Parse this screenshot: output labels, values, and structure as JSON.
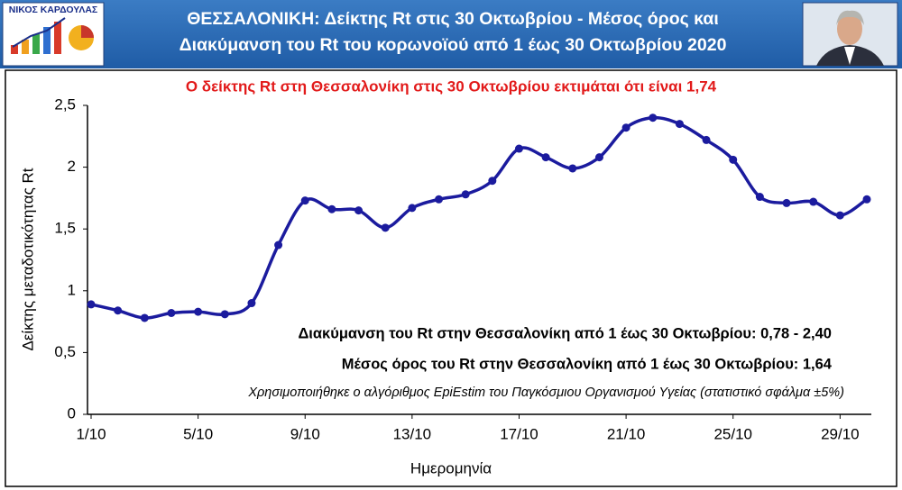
{
  "header": {
    "logo_title": "ΝΙΚΟΣ ΚΑΡΔΟΥΛΑΣ",
    "title_lines": [
      "ΘΕΣΣΑΛΟΝΙΚΗ: Δείκτης Rt στις 30 Οκτωβρίου - Μέσος όρος και",
      "Διακύμανση του Rt του κορωνοϊού από 1 έως 30 Οκτωβρίου 2020"
    ]
  },
  "chart_data": {
    "type": "line",
    "title": "Ο δείκτης Rt στη Θεσσαλονίκη στις 30 Οκτωβρίου εκτιμάται ότι είναι 1,74",
    "x_label": "Ημερομηνία",
    "y_label": "Δείκτης μεταδοτικότητας Rt",
    "categories": [
      "1/10",
      null,
      null,
      null,
      "5/10",
      null,
      null,
      null,
      "9/10",
      null,
      null,
      null,
      "13/10",
      null,
      null,
      null,
      "17/10",
      null,
      null,
      null,
      "21/10",
      null,
      null,
      null,
      "25/10",
      null,
      null,
      null,
      "29/10",
      null
    ],
    "values": [
      0.89,
      0.84,
      0.78,
      0.82,
      0.83,
      0.81,
      0.9,
      1.37,
      1.73,
      1.66,
      1.65,
      1.51,
      1.67,
      1.74,
      1.78,
      1.89,
      2.15,
      2.08,
      1.99,
      2.08,
      2.32,
      2.4,
      2.35,
      2.22,
      2.06,
      1.76,
      1.71,
      1.72,
      1.61,
      1.74
    ],
    "color": "#1b1b9e",
    "smooth": true,
    "markers": true,
    "grid": false,
    "ylim": [
      0,
      2.5
    ],
    "yticks": [
      {
        "value": 0,
        "label": "0"
      },
      {
        "value": 0.5,
        "label": "0,5"
      },
      {
        "value": 1,
        "label": "1"
      },
      {
        "value": 1.5,
        "label": "1,5"
      },
      {
        "value": 2,
        "label": "2"
      },
      {
        "value": 2.5,
        "label": "2,5"
      }
    ],
    "annotations": [
      "Διακύμανση του Rt στην Θεσσαλονίκη από 1 έως 30 Οκτωβρίου: 0,78 -  2,40",
      "Μέσος όρος του Rt στην Θεσσαλονίκη από 1 έως 30 Οκτωβρίου: 1,64",
      "Χρησιμοποιήθηκε ο αλγόριθμος EpiEstim του Παγκόσμιου Οργανισμού Υγείας (στατιστικό σφάλμα ±5%)"
    ]
  }
}
